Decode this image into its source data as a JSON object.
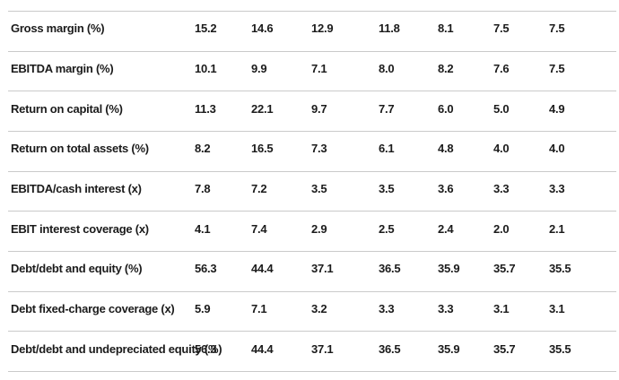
{
  "table": {
    "description": "Financial ratios table",
    "rows": [
      {
        "label": "Gross margin (%)",
        "values": [
          "15.2",
          "14.6",
          "12.9",
          "11.8",
          "8.1",
          "7.5",
          "7.5"
        ]
      },
      {
        "label": "EBITDA margin (%)",
        "values": [
          "10.1",
          "9.9",
          "7.1",
          "8.0",
          "8.2",
          "7.6",
          "7.5"
        ]
      },
      {
        "label": "Return on capital (%)",
        "values": [
          "11.3",
          "22.1",
          "9.7",
          "7.7",
          "6.0",
          "5.0",
          "4.9"
        ]
      },
      {
        "label": "Return on total assets (%)",
        "values": [
          "8.2",
          "16.5",
          "7.3",
          "6.1",
          "4.8",
          "4.0",
          "4.0"
        ]
      },
      {
        "label": "EBITDA/cash interest (x)",
        "values": [
          "7.8",
          "7.2",
          "3.5",
          "3.5",
          "3.6",
          "3.3",
          "3.3"
        ]
      },
      {
        "label": "EBIT interest coverage (x)",
        "values": [
          "4.1",
          "7.4",
          "2.9",
          "2.5",
          "2.4",
          "2.0",
          "2.1"
        ]
      },
      {
        "label": "Debt/debt and equity (%)",
        "values": [
          "56.3",
          "44.4",
          "37.1",
          "36.5",
          "35.9",
          "35.7",
          "35.5"
        ]
      },
      {
        "label": "Debt fixed-charge coverage (x)",
        "values": [
          "5.9",
          "7.1",
          "3.2",
          "3.3",
          "3.3",
          "3.1",
          "3.1"
        ]
      },
      {
        "label": "Debt/debt and undepreciated equity (%)",
        "values": [
          "56.3",
          "44.4",
          "37.1",
          "36.5",
          "35.9",
          "35.7",
          "35.5"
        ]
      }
    ]
  },
  "colors": {
    "text": "#1b1b1b",
    "divider": "#cacaca",
    "background": "#ffffff"
  }
}
